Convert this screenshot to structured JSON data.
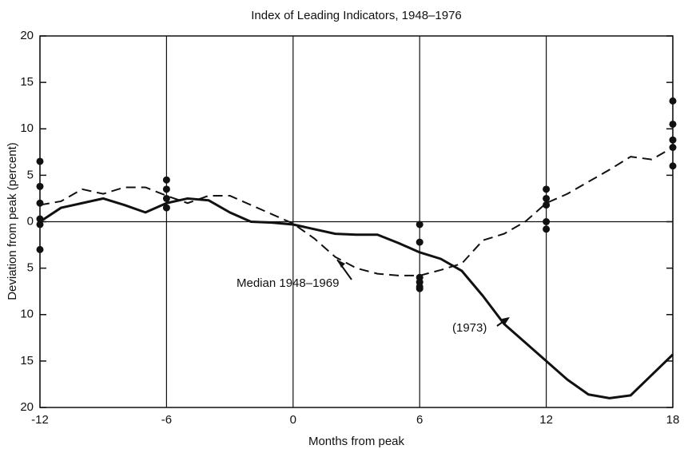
{
  "chart_data": {
    "type": "line",
    "title": "Index of Leading Indicators, 1948–1976",
    "xlabel": "Months from peak",
    "ylabel": "Deviation from peak (percent)",
    "xlim": [
      -12,
      18
    ],
    "xticks": [
      -12,
      -6,
      0,
      6,
      12,
      18
    ],
    "ylim": [
      -20,
      20
    ],
    "yticks": [
      20,
      15,
      10,
      5,
      0,
      {
        "value": -5,
        "label": "5"
      },
      {
        "value": -10,
        "label": "10"
      },
      {
        "value": -15,
        "label": "15"
      },
      {
        "value": -20,
        "label": "20"
      }
    ],
    "x": [
      -12,
      -11,
      -10,
      -9,
      -8,
      -7,
      -6,
      -5,
      -4,
      -3,
      -2,
      -1,
      0,
      1,
      2,
      3,
      4,
      5,
      6,
      7,
      8,
      9,
      10,
      11,
      12,
      13,
      14,
      15,
      16,
      17,
      18
    ],
    "series": [
      {
        "name": "(1973)",
        "color": "#111111",
        "dash": false,
        "values": [
          0,
          1.5,
          2,
          2.5,
          1.8,
          1,
          2,
          2.5,
          2.3,
          1,
          0,
          -0.1,
          -0.3,
          -0.8,
          -1.3,
          -1.4,
          -1.4,
          -2.3,
          -3.3,
          -4,
          -5.3,
          -8,
          -11,
          -13,
          -15,
          -17,
          -18.6,
          -19,
          -18.7,
          -16.5,
          -14.3
        ]
      },
      {
        "name": "Median 1948–1969",
        "color": "#111111",
        "dash": true,
        "values": [
          1.8,
          2.2,
          3.5,
          3,
          3.7,
          3.7,
          2.8,
          2,
          2.8,
          2.8,
          1.8,
          0.8,
          -0.2,
          -1.8,
          -3.8,
          -5,
          -5.6,
          -5.8,
          -5.8,
          -5.2,
          -4.5,
          -2,
          -1.3,
          0,
          2,
          3,
          4.3,
          5.6,
          7,
          6.7,
          8
        ]
      }
    ],
    "points": {
      "x": [
        -12,
        -12,
        -12,
        -12,
        -12,
        -12,
        -6,
        -6,
        -6,
        -6,
        6,
        6,
        6,
        6,
        6,
        6,
        12,
        12,
        12,
        12,
        12,
        18,
        18,
        18,
        18,
        18
      ],
      "y": [
        6.5,
        3.8,
        2,
        0.3,
        -0.3,
        -3,
        4.5,
        3.5,
        2.5,
        1.5,
        -0.3,
        -2.2,
        -6,
        -6.5,
        -7,
        -7.2,
        3.5,
        2.5,
        1.8,
        0,
        -0.8,
        13,
        10.5,
        8.8,
        8,
        6
      ]
    }
  }
}
